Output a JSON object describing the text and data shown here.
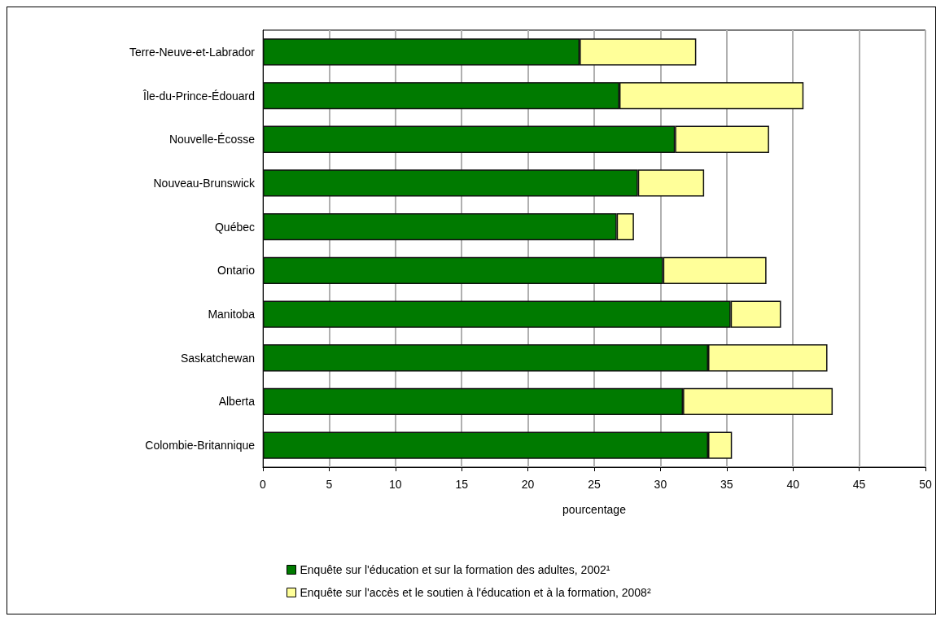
{
  "chart_data": {
    "type": "bar",
    "orientation": "horizontal",
    "stacked": true,
    "xlabel": "pourcentage",
    "categories": [
      "Terre-Neuve-et-Labrador",
      "Île-du-Prince-Édouard",
      "Nouvelle-Écosse",
      "Nouveau-Brunswick",
      "Québec",
      "Ontario",
      "Manitoba",
      "Saskatchewan",
      "Alberta",
      "Colombie-Britannique"
    ],
    "series": [
      {
        "name": "Enquête sur l'éducation et sur la formation des adultes, 2002¹",
        "color": "#007a00",
        "values": [
          23.9,
          26.9,
          31.1,
          28.3,
          26.7,
          30.2,
          35.3,
          33.6,
          31.7,
          33.6
        ]
      },
      {
        "name": "Enquête sur l'accès et le soutien à l'éducation et à la formation, 2008²",
        "color": "#ffff99",
        "values": [
          8.8,
          13.9,
          7.1,
          5.0,
          1.3,
          7.8,
          3.8,
          9.0,
          11.3,
          1.8
        ]
      }
    ],
    "xlim": [
      0,
      50
    ],
    "xticks": [
      0,
      5,
      10,
      15,
      20,
      25,
      30,
      35,
      40,
      45,
      50
    ],
    "grid": "x",
    "legend": "bottom"
  }
}
